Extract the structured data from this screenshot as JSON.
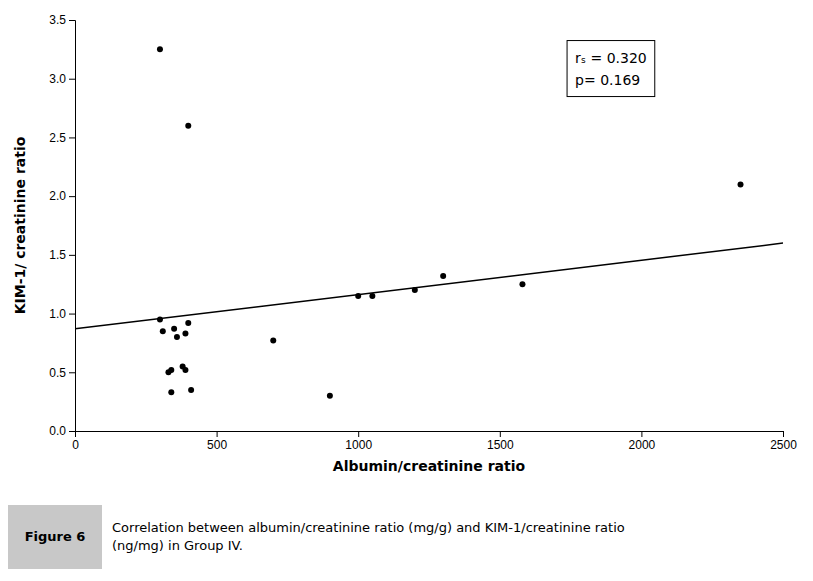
{
  "chart_data": {
    "type": "scatter",
    "xlabel": "Albumin/creatinine ratio",
    "ylabel": "KIM-1/ creatinine ratio",
    "series": [
      {
        "type": "scatter",
        "color": "#000000",
        "x": [
          300,
          310,
          330,
          340,
          340,
          350,
          360,
          380,
          390,
          390,
          400,
          410,
          300,
          400,
          700,
          900,
          1000,
          1050,
          1200,
          1300,
          1580,
          2350
        ],
        "values": [
          0.95,
          0.85,
          0.5,
          0.33,
          0.52,
          0.87,
          0.8,
          0.55,
          0.52,
          0.83,
          2.6,
          0.35,
          3.25,
          0.92,
          0.77,
          0.3,
          1.15,
          1.15,
          1.2,
          1.32,
          1.25,
          2.1
        ]
      },
      {
        "type": "line",
        "color": "#000000",
        "x": [
          0,
          2500
        ],
        "values": [
          0.87,
          1.6
        ]
      }
    ],
    "xlim": [
      0,
      2500
    ],
    "ylim": [
      0.0,
      3.5
    ],
    "xticks": [
      0,
      500,
      1000,
      1500,
      2000,
      2500
    ],
    "yticks": [
      {
        "value": 0.0,
        "label": "0.0"
      },
      0.5,
      {
        "value": 1.0,
        "label": "1.0"
      },
      1.5,
      {
        "value": 2.0,
        "label": "2.0"
      },
      2.5,
      {
        "value": 3.0,
        "label": "3.0"
      },
      3.5
    ],
    "grid": false,
    "annotations": [
      "rₛ = 0.320",
      "p= 0.169"
    ],
    "figure_label": "Figure 6",
    "caption": [
      "Correlation between albumin/creatinine ratio (mg/g) and KIM-1/creatinine ratio",
      "(ng/mg) in Group IV."
    ]
  }
}
